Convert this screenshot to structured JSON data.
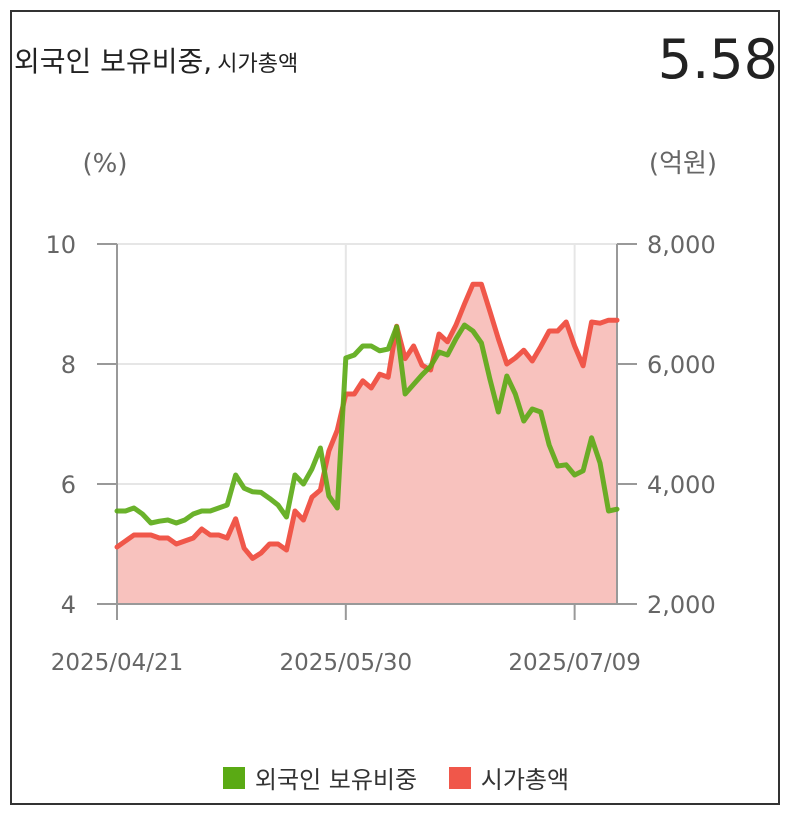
{
  "header": {
    "title_main": "외국인 보유비중,",
    "title_sub": "시가총액",
    "current_value": "5.58"
  },
  "legend": {
    "items": [
      {
        "label": "외국인 보유비중",
        "color": "#5aaa14"
      },
      {
        "label": "시가총액",
        "color": "#f0574a"
      }
    ]
  },
  "chart_data": {
    "type": "line",
    "x_tick_labels": [
      "2025/04/21",
      "2025/05/30",
      "2025/07/09"
    ],
    "x_tick_index": [
      0,
      27,
      54
    ],
    "left_axis": {
      "label": "(%)",
      "ylim": [
        4,
        10
      ],
      "ticks": [
        "4",
        "6",
        "8",
        "10"
      ],
      "tick_values": [
        4,
        6,
        8,
        10
      ]
    },
    "right_axis": {
      "label": "(억원)",
      "ylim": [
        2000,
        8000
      ],
      "ticks": [
        "2,000",
        "4,000",
        "6,000",
        "8,000"
      ],
      "tick_values": [
        2000,
        4000,
        6000,
        8000
      ]
    },
    "grid": true,
    "legend_position": "bottom",
    "series": [
      {
        "name": "외국인 보유비중",
        "axis": "left",
        "color": "#5aaa14",
        "values": [
          5.55,
          5.55,
          5.6,
          5.5,
          5.35,
          5.38,
          5.4,
          5.35,
          5.4,
          5.5,
          5.55,
          5.55,
          5.6,
          5.65,
          6.15,
          5.93,
          5.87,
          5.86,
          5.76,
          5.65,
          5.45,
          6.15,
          6.0,
          6.25,
          6.6,
          5.8,
          5.6,
          8.1,
          8.15,
          8.3,
          8.3,
          8.22,
          8.25,
          8.62,
          7.5,
          7.66,
          7.82,
          7.96,
          8.2,
          8.15,
          8.42,
          8.65,
          8.55,
          8.35,
          7.75,
          7.2,
          7.8,
          7.5,
          7.05,
          7.25,
          7.2,
          6.65,
          6.3,
          6.32,
          6.15,
          6.22,
          6.77,
          6.35,
          5.55,
          5.58
        ]
      },
      {
        "name": "시가총액",
        "axis": "right",
        "color": "#f0574a",
        "fill": "#f8c2be",
        "values": [
          2950,
          3050,
          3150,
          3150,
          3150,
          3100,
          3100,
          3000,
          3050,
          3100,
          3250,
          3150,
          3150,
          3100,
          3420,
          2930,
          2760,
          2850,
          3000,
          3000,
          2900,
          3550,
          3400,
          3780,
          3900,
          4550,
          4900,
          5500,
          5500,
          5720,
          5600,
          5830,
          5780,
          6630,
          6090,
          6300,
          5980,
          5900,
          6500,
          6370,
          6650,
          7000,
          7330,
          7330,
          6880,
          6420,
          6000,
          6100,
          6230,
          6050,
          6290,
          6550,
          6550,
          6700,
          6300,
          5970,
          6700,
          6680,
          6730,
          6730
        ]
      }
    ]
  }
}
